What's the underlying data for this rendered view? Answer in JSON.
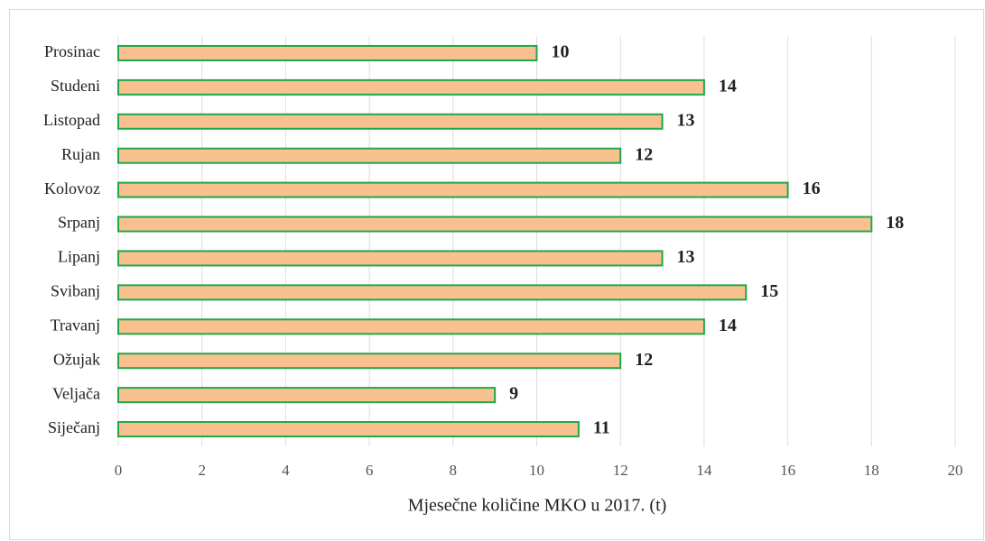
{
  "chart_data": {
    "type": "bar",
    "orientation": "horizontal",
    "x_label": "Mjesečne količine MKO u 2017. (t)",
    "categories": [
      "Siječanj",
      "Veljača",
      "Ožujak",
      "Travanj",
      "Svibanj",
      "Lipanj",
      "Srpanj",
      "Kolovoz",
      "Rujan",
      "Listopad",
      "Studeni",
      "Prosinac"
    ],
    "values": [
      11,
      9,
      12,
      14,
      15,
      13,
      18,
      16,
      12,
      13,
      14,
      10
    ],
    "color": "#f8c18f",
    "edge_color": "#1fa84a",
    "xlim": [
      0,
      20
    ],
    "xticks": [
      0,
      2,
      4,
      6,
      8,
      10,
      12,
      14,
      16,
      18,
      20
    ],
    "grid": true
  }
}
